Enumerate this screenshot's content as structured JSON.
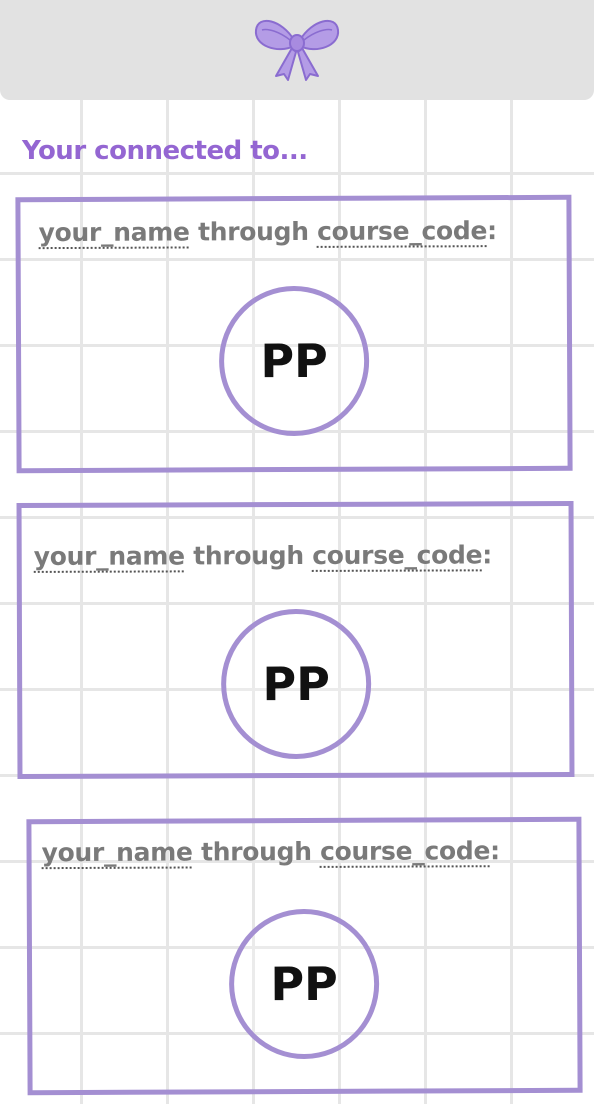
{
  "header": {
    "logo_icon": "bow-icon",
    "colors": {
      "bow_fill": "#b49ce6",
      "bow_stroke": "#8a6cd0",
      "header_bg": "#e2e2e2"
    }
  },
  "title": "Your connected to...",
  "accent_color": "#a48fd2",
  "connections": [
    {
      "name_placeholder": "your_name",
      "connector": "through",
      "course_placeholder": "course_code",
      "suffix": ":",
      "avatar_initials": "PP"
    },
    {
      "name_placeholder": "your_name",
      "connector": "through",
      "course_placeholder": "course_code",
      "suffix": ":",
      "avatar_initials": "PP"
    },
    {
      "name_placeholder": "your_name",
      "connector": "through",
      "course_placeholder": "course_code",
      "suffix": ":",
      "avatar_initials": "PP"
    }
  ]
}
